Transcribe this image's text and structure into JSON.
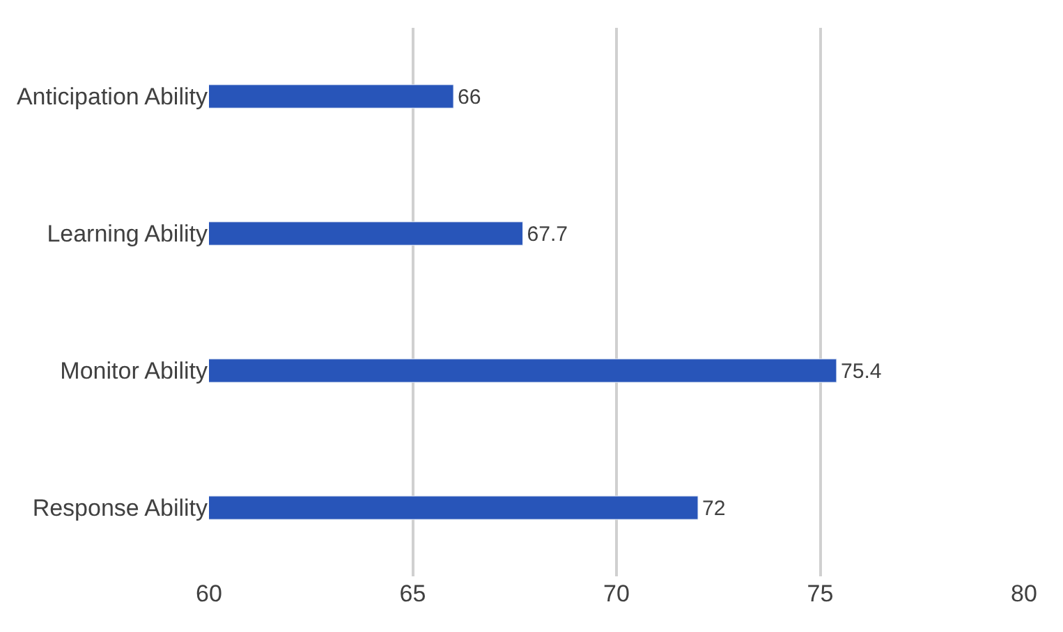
{
  "chart_data": {
    "type": "bar",
    "orientation": "horizontal",
    "categories": [
      "Anticipation Ability",
      "Learning Ability",
      "Monitor Ability",
      "Response Ability"
    ],
    "values": [
      66,
      67.7,
      75.4,
      72
    ],
    "color": "#2855b9",
    "xlim": [
      60,
      80
    ],
    "xticks": [
      60,
      65,
      70,
      75,
      80
    ],
    "grid": "x",
    "legend": false,
    "data_labels": true
  }
}
